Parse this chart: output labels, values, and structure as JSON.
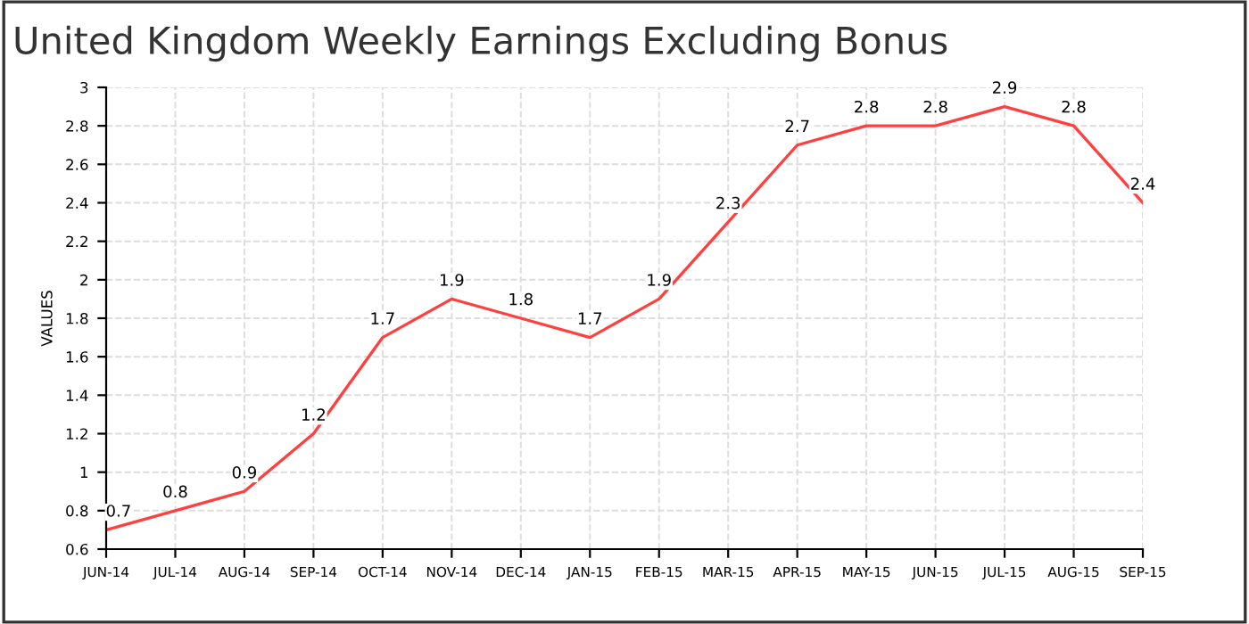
{
  "chart_data": {
    "type": "line",
    "title": "United Kingdom Weekly Earnings Excluding Bonus",
    "ylabel": "VALUES",
    "categories": [
      "JUN-14",
      "JUL-14",
      "AUG-14",
      "SEP-14",
      "OCT-14",
      "NOV-14",
      "DEC-14",
      "JAN-15",
      "FEB-15",
      "MAR-15",
      "APR-15",
      "MAY-15",
      "JUN-15",
      "JUL-15",
      "AUG-15",
      "SEP-15"
    ],
    "series": [
      {
        "color": "#ff4040",
        "values": [
          0.7,
          0.8,
          0.9,
          1.2,
          1.7,
          1.9,
          1.8,
          1.7,
          1.9,
          2.3,
          2.7,
          2.8,
          2.8,
          2.9,
          2.8,
          2.4
        ]
      }
    ],
    "ylim": [
      0.6,
      3
    ],
    "yticks": [
      0.6,
      0.8,
      1,
      1.2,
      1.4,
      1.6,
      1.8,
      2,
      2.2,
      2.4,
      2.6,
      2.8,
      3
    ],
    "grid": true,
    "data_labels": true,
    "line_style": "solid",
    "marker": "none"
  }
}
